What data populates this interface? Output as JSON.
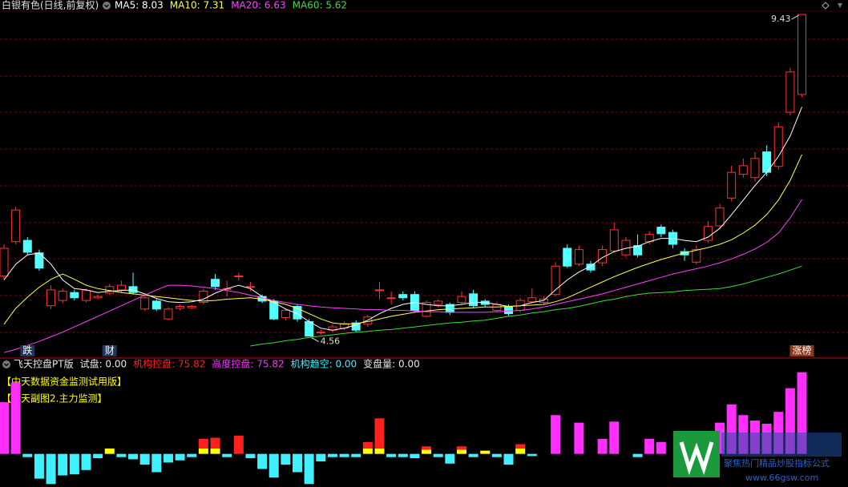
{
  "chart_data": [
    {
      "type": "candlestick",
      "title": "白银有色(日线,前复权)",
      "up_color": "#ff3232",
      "down_color": "#54ffff",
      "grid": true,
      "ylim": [
        4.24,
        9.48
      ],
      "categories": [
        null,
        null,
        "跌",
        null,
        null,
        null,
        null,
        null,
        null,
        "财",
        null,
        null,
        null,
        null,
        null,
        null,
        null,
        null,
        null,
        null,
        null,
        null,
        null,
        null,
        null,
        null,
        null,
        null,
        null,
        null,
        null,
        null,
        null,
        null,
        null,
        null,
        null,
        null,
        null,
        null,
        null,
        null,
        null,
        null,
        null,
        null,
        null,
        null,
        null,
        null,
        null,
        null,
        null,
        null,
        null,
        null,
        null,
        null,
        null,
        null,
        null,
        null,
        null,
        null,
        null,
        null,
        null,
        null,
        "涨榜"
      ],
      "open": [
        5.47,
        5.99,
        6.01,
        5.82,
        5.02,
        5.1,
        5.22,
        5.1,
        5.14,
        5.21,
        5.26,
        5.31,
        4.97,
        5.09,
        4.82,
        4.98,
        4.99,
        5.07,
        5.42,
        5.28,
        5.47,
        5.31,
        5.16,
        5.09,
        4.84,
        5.01,
        4.78,
        4.62,
        4.65,
        4.68,
        4.76,
        4.74,
        5.26,
        5.14,
        5.19,
        5.19,
        4.86,
        5.04,
        5.04,
        5.07,
        5.2,
        5.09,
        4.95,
        5.0,
        4.95,
        5.08,
        5.07,
        5.19,
        5.89,
        5.65,
        5.65,
        5.67,
        5.85,
        5.79,
        5.93,
        5.99,
        6.21,
        6.13,
        5.84,
        5.68,
        6.01,
        6.23,
        6.65,
        7.01,
        6.96,
        7.35,
        7.13,
        7.95,
        8.22
      ],
      "high": [
        5.95,
        6.52,
        6.06,
        5.87,
        5.33,
        5.28,
        5.26,
        5.28,
        5.19,
        5.35,
        5.4,
        5.52,
        5.19,
        5.12,
        5.0,
        5.04,
        5.03,
        5.28,
        5.5,
        5.4,
        5.52,
        5.38,
        5.19,
        5.12,
        4.98,
        5.04,
        4.82,
        4.66,
        4.74,
        4.78,
        4.8,
        4.88,
        5.38,
        5.24,
        5.24,
        5.24,
        5.1,
        5.12,
        5.07,
        5.24,
        5.26,
        5.12,
        5.08,
        5.04,
        5.14,
        5.28,
        5.16,
        5.68,
        5.95,
        5.93,
        5.7,
        5.93,
        6.28,
        6.06,
        6.1,
        6.15,
        6.25,
        6.17,
        5.89,
        5.93,
        6.3,
        6.56,
        7.14,
        7.25,
        7.35,
        7.45,
        7.8,
        8.62,
        9.43
      ],
      "low": [
        5.41,
        5.95,
        5.79,
        5.55,
        4.97,
        5.06,
        5.1,
        5.07,
        5.12,
        5.18,
        5.22,
        5.19,
        4.94,
        4.94,
        4.8,
        4.95,
        4.97,
        5.04,
        5.26,
        5.16,
        5.4,
        5.24,
        5.06,
        4.8,
        4.8,
        4.78,
        4.56,
        4.58,
        4.62,
        4.65,
        4.62,
        4.7,
        5.12,
        5.04,
        5.1,
        4.92,
        4.84,
        5.0,
        4.88,
        5.04,
        4.98,
        5.0,
        4.92,
        4.86,
        4.92,
        5.06,
        5.04,
        5.16,
        5.59,
        5.62,
        5.52,
        5.62,
        5.82,
        5.75,
        5.75,
        5.95,
        6.06,
        5.89,
        5.7,
        5.65,
        5.97,
        6.2,
        6.6,
        6.96,
        6.9,
        6.98,
        7.08,
        7.9,
        8.18
      ],
      "close": [
        5.89,
        6.47,
        5.83,
        5.59,
        5.26,
        5.24,
        5.14,
        5.25,
        5.16,
        5.31,
        5.33,
        5.22,
        5.14,
        4.97,
        4.97,
        5.01,
        5.01,
        5.24,
        5.31,
        5.28,
        5.47,
        5.31,
        5.09,
        4.82,
        4.95,
        4.82,
        4.56,
        4.62,
        4.7,
        4.75,
        4.65,
        4.85,
        5.26,
        5.14,
        5.14,
        4.95,
        5.07,
        5.09,
        4.92,
        5.16,
        5.02,
        5.04,
        5.04,
        4.9,
        5.1,
        5.14,
        5.12,
        5.62,
        5.62,
        5.87,
        5.56,
        5.87,
        6.17,
        6.01,
        5.79,
        6.1,
        6.11,
        5.95,
        5.79,
        5.87,
        6.22,
        6.5,
        7.04,
        7.14,
        7.25,
        7.04,
        7.73,
        8.56,
        9.43
      ],
      "max_label": 9.43,
      "min_label": 4.56,
      "series": [
        {
          "legend_label": "MA5: 8.03",
          "color": "#ffffff",
          "values": [
            5.41,
            5.65,
            5.79,
            5.82,
            5.65,
            5.41,
            5.28,
            5.26,
            5.22,
            5.24,
            5.25,
            5.26,
            5.2,
            5.13,
            5.08,
            5.07,
            5.08,
            5.12,
            5.21,
            5.28,
            5.33,
            5.28,
            5.16,
            5.07,
            4.97,
            4.9,
            4.78,
            4.68,
            4.65,
            4.68,
            4.73,
            4.8,
            4.9,
            4.98,
            5.04,
            5.07,
            5.04,
            5.02,
            5.02,
            5.04,
            5.07,
            5.07,
            5.04,
            5.01,
            5.02,
            5.07,
            5.1,
            5.26,
            5.41,
            5.53,
            5.62,
            5.75,
            5.84,
            5.89,
            5.92,
            5.99,
            6.04,
            6.04,
            6.01,
            5.99,
            6.06,
            6.19,
            6.4,
            6.62,
            6.84,
            7.04,
            7.28,
            7.59,
            8.03
          ]
        },
        {
          "legend_label": "MA10: 7.31",
          "color": "#ffff4a",
          "values": [
            4.74,
            4.98,
            5.15,
            5.3,
            5.42,
            5.5,
            5.42,
            5.33,
            5.28,
            5.25,
            5.22,
            5.2,
            5.18,
            5.16,
            5.14,
            5.12,
            5.1,
            5.09,
            5.1,
            5.12,
            5.13,
            5.14,
            5.12,
            5.08,
            5.04,
            4.98,
            4.9,
            4.82,
            4.76,
            4.74,
            4.75,
            4.78,
            4.82,
            4.86,
            4.89,
            4.92,
            4.94,
            4.96,
            4.97,
            4.98,
            4.99,
            5.0,
            5.0,
            5.01,
            5.02,
            5.03,
            5.04,
            5.08,
            5.14,
            5.22,
            5.3,
            5.38,
            5.46,
            5.53,
            5.6,
            5.66,
            5.72,
            5.77,
            5.82,
            5.86,
            5.9,
            5.95,
            6.02,
            6.12,
            6.24,
            6.4,
            6.62,
            6.92,
            7.31
          ]
        },
        {
          "legend_label": "MA20: 6.63",
          "color": "#ff40ff",
          "values": [
            4.31,
            4.36,
            4.42,
            4.48,
            4.55,
            4.62,
            4.7,
            4.78,
            4.86,
            4.94,
            5.02,
            5.1,
            5.18,
            5.26,
            5.33,
            5.33,
            5.32,
            5.3,
            5.28,
            5.25,
            5.22,
            5.18,
            5.14,
            5.1,
            5.07,
            5.04,
            5.02,
            5.0,
            4.99,
            4.98,
            4.97,
            4.96,
            4.96,
            4.95,
            4.95,
            4.94,
            4.93,
            4.93,
            4.92,
            4.92,
            4.92,
            4.92,
            4.93,
            4.94,
            4.95,
            4.97,
            5.0,
            5.04,
            5.08,
            5.12,
            5.16,
            5.2,
            5.25,
            5.3,
            5.35,
            5.4,
            5.45,
            5.5,
            5.54,
            5.58,
            5.62,
            5.67,
            5.73,
            5.8,
            5.88,
            5.98,
            6.12,
            6.35,
            6.63
          ]
        },
        {
          "legend_label": "MA60: 5.62",
          "color": "#3cdc3c",
          "values": [
            null,
            null,
            null,
            null,
            null,
            null,
            null,
            null,
            null,
            null,
            null,
            null,
            null,
            null,
            null,
            null,
            null,
            null,
            null,
            null,
            null,
            4.41,
            4.44,
            4.46,
            4.49,
            4.51,
            4.54,
            4.56,
            4.58,
            4.6,
            4.62,
            4.63,
            4.65,
            4.66,
            4.68,
            4.7,
            4.72,
            4.74,
            4.76,
            4.77,
            4.79,
            4.8,
            4.83,
            4.86,
            4.88,
            4.91,
            4.93,
            4.96,
            4.98,
            5.01,
            5.05,
            5.09,
            5.12,
            5.16,
            5.19,
            5.21,
            5.22,
            5.23,
            5.25,
            5.26,
            5.27,
            5.28,
            5.31,
            5.35,
            5.4,
            5.45,
            5.5,
            5.56,
            5.62
          ]
        }
      ]
    },
    {
      "type": "bar",
      "title": "飞天控盘PT版",
      "notes": [
        "【中天数据资金监测试用版】",
        "【飞天副图2.主力监测】"
      ],
      "ylim": [
        -30,
        89
      ],
      "stacked": true,
      "series": [
        {
          "legend_label": "试盘: 0.00",
          "label_color": "#e8e8e8",
          "color": "#ffff00",
          "values": [
            null,
            null,
            null,
            null,
            null,
            null,
            null,
            null,
            null,
            5,
            null,
            null,
            null,
            null,
            null,
            null,
            null,
            5,
            5,
            null,
            null,
            null,
            null,
            null,
            null,
            null,
            null,
            null,
            null,
            null,
            null,
            5,
            5,
            null,
            null,
            null,
            4,
            null,
            null,
            4,
            null,
            3,
            null,
            null,
            5,
            null,
            null,
            null,
            null,
            null,
            null,
            null,
            null,
            null,
            null,
            null,
            null,
            null,
            null,
            null,
            null,
            null,
            null,
            null,
            null,
            null,
            null,
            null,
            null
          ]
        },
        {
          "legend_label": "机构控盘: 75.82",
          "color": "#ff2020",
          "values": [
            null,
            null,
            null,
            null,
            null,
            null,
            null,
            null,
            null,
            null,
            null,
            null,
            null,
            null,
            null,
            null,
            null,
            9,
            10,
            null,
            17,
            null,
            null,
            null,
            null,
            null,
            null,
            null,
            null,
            null,
            null,
            6,
            28,
            null,
            null,
            null,
            3,
            null,
            null,
            3,
            null,
            null,
            null,
            null,
            4,
            null,
            null,
            null,
            null,
            null,
            null,
            null,
            null,
            null,
            null,
            null,
            null,
            null,
            null,
            null,
            null,
            null,
            null,
            null,
            null,
            null,
            null,
            null,
            null
          ]
        },
        {
          "legend_label": "高度控盘: 75.82",
          "color": "#ff30ff",
          "values": [
            48,
            66,
            null,
            null,
            null,
            null,
            null,
            null,
            null,
            null,
            null,
            null,
            null,
            null,
            null,
            null,
            null,
            null,
            null,
            null,
            null,
            null,
            null,
            null,
            null,
            null,
            null,
            null,
            null,
            null,
            null,
            null,
            null,
            null,
            null,
            null,
            null,
            null,
            null,
            null,
            null,
            null,
            null,
            null,
            null,
            null,
            null,
            36,
            null,
            29,
            null,
            14,
            30,
            null,
            null,
            14,
            11,
            null,
            null,
            13,
            20,
            29,
            46,
            36,
            31,
            28,
            39,
            61,
            75.82
          ]
        },
        {
          "legend_label": "机构趋空: 0.00",
          "color": "#40f0ff",
          "values": [
            null,
            null,
            -3,
            -23,
            -28,
            -20,
            -19,
            -15,
            -4,
            null,
            -3,
            -5,
            -10,
            -17,
            -8,
            -6,
            -3,
            null,
            null,
            -3,
            null,
            -4,
            -14,
            -22,
            -10,
            -17,
            -28,
            -7,
            -3,
            -3,
            -3,
            null,
            null,
            -3,
            -3,
            -4,
            null,
            -3,
            -9,
            null,
            -3,
            null,
            -3,
            -10,
            null,
            -2,
            null,
            null,
            null,
            null,
            null,
            null,
            null,
            null,
            -3,
            null,
            null,
            null,
            -3,
            null,
            null,
            null,
            null,
            null,
            null,
            null,
            null,
            null,
            null
          ]
        },
        {
          "legend_label": "变盘量: 0.00",
          "label_color": "#e8e8e8",
          "color": "#ffffff"
        }
      ]
    }
  ],
  "watermark": {
    "tagline": "聚焦热门精品炒股指标公式",
    "url": "www.66gsw.com"
  }
}
